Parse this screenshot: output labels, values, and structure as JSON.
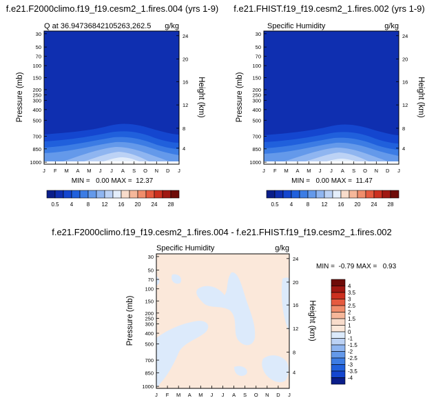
{
  "chart_data": [
    {
      "type": "heatmap",
      "title": "f.e21.F2000climo.f19_f19.cesm2_1.fires.004 (yrs 1-9)",
      "subtitle_left": "Q at 36.94736842105263,262.5",
      "subtitle_right": "g/kg",
      "ylabel": "Pressure (mb)",
      "ylabel_right": "Height (km)",
      "x_ticks": [
        "J",
        "F",
        "M",
        "A",
        "M",
        "J",
        "J",
        "A",
        "S",
        "O",
        "N",
        "D",
        "J"
      ],
      "y_ticks": [
        "30",
        "50",
        "70",
        "100",
        "150",
        "200",
        "250",
        "300",
        "400",
        "500",
        "700",
        "850",
        "1000"
      ],
      "height_ticks": [
        "24",
        "20",
        "16",
        "12",
        "8",
        "4"
      ],
      "min": "0.00",
      "max": "12.37",
      "minmax_text": "MIN =   0.00 MAX =  12.37",
      "colorbar_labels": [
        "0.5",
        "4",
        "8",
        "12",
        "16",
        "20",
        "24",
        "28"
      ]
    },
    {
      "type": "heatmap",
      "title": "f.e21.FHIST.f19_f19.cesm2_1.fires.002 (yrs 1-9)",
      "subtitle_left": "Specific Humidity",
      "subtitle_right": "g/kg",
      "ylabel": "Pressure (mb)",
      "ylabel_right": "Height (km)",
      "x_ticks": [
        "J",
        "F",
        "M",
        "A",
        "M",
        "J",
        "J",
        "A",
        "S",
        "O",
        "N",
        "D",
        "J"
      ],
      "y_ticks": [
        "30",
        "50",
        "70",
        "100",
        "150",
        "200",
        "250",
        "300",
        "400",
        "500",
        "700",
        "850",
        "1000"
      ],
      "height_ticks": [
        "24",
        "20",
        "16",
        "12",
        "8",
        "4"
      ],
      "min": "0.00",
      "max": "11.47",
      "minmax_text": "MIN =   0.00 MAX =  11.47",
      "colorbar_labels": [
        "0.5",
        "4",
        "8",
        "12",
        "16",
        "20",
        "24",
        "28"
      ]
    },
    {
      "type": "heatmap",
      "title": "f.e21.F2000climo.f19_f19.cesm2_1.fires.004 - f.e21.FHIST.f19_f19.cesm2_1.fires.002",
      "subtitle_left": "Specific Humidity",
      "subtitle_right": "g/kg",
      "ylabel": "Pressure (mb)",
      "ylabel_right": "Height (km)",
      "x_ticks": [
        "J",
        "F",
        "M",
        "A",
        "M",
        "J",
        "J",
        "A",
        "S",
        "O",
        "N",
        "D",
        "J"
      ],
      "y_ticks": [
        "30",
        "50",
        "70",
        "100",
        "150",
        "200",
        "250",
        "300",
        "400",
        "500",
        "700",
        "850",
        "1000"
      ],
      "height_ticks": [
        "24",
        "20",
        "16",
        "12",
        "8",
        "4"
      ],
      "min": "-0.79",
      "max": "0.93",
      "minmax_text": "MIN =  -0.79 MAX =   0.93",
      "colorbar_labels": [
        "4",
        "3.5",
        "3",
        "2.5",
        "2",
        "1.5",
        "1",
        "0",
        "-1",
        "-1.5",
        "-2",
        "-2.5",
        "-3",
        "-3.5",
        "-4"
      ]
    }
  ],
  "colors": {
    "seq": [
      "#0a1e8a",
      "#0f2fb0",
      "#1446cf",
      "#2060dc",
      "#3c7ce4",
      "#6499ea",
      "#8fb5f0",
      "#bcd2f5",
      "#e4eefb",
      "#f8dccb",
      "#f6b79a",
      "#f08d6c",
      "#e55a3f",
      "#cc3020",
      "#a01812",
      "#6e0b08"
    ],
    "div": [
      "#6e0b08",
      "#a01812",
      "#cc3020",
      "#e55a3f",
      "#f08d6c",
      "#f6b79a",
      "#f8dccb",
      "#fbe8da",
      "#dceafb",
      "#bcd2f5",
      "#8fb5f0",
      "#6499ea",
      "#3c7ce4",
      "#2060dc",
      "#1446cf",
      "#0a1e8a"
    ]
  }
}
